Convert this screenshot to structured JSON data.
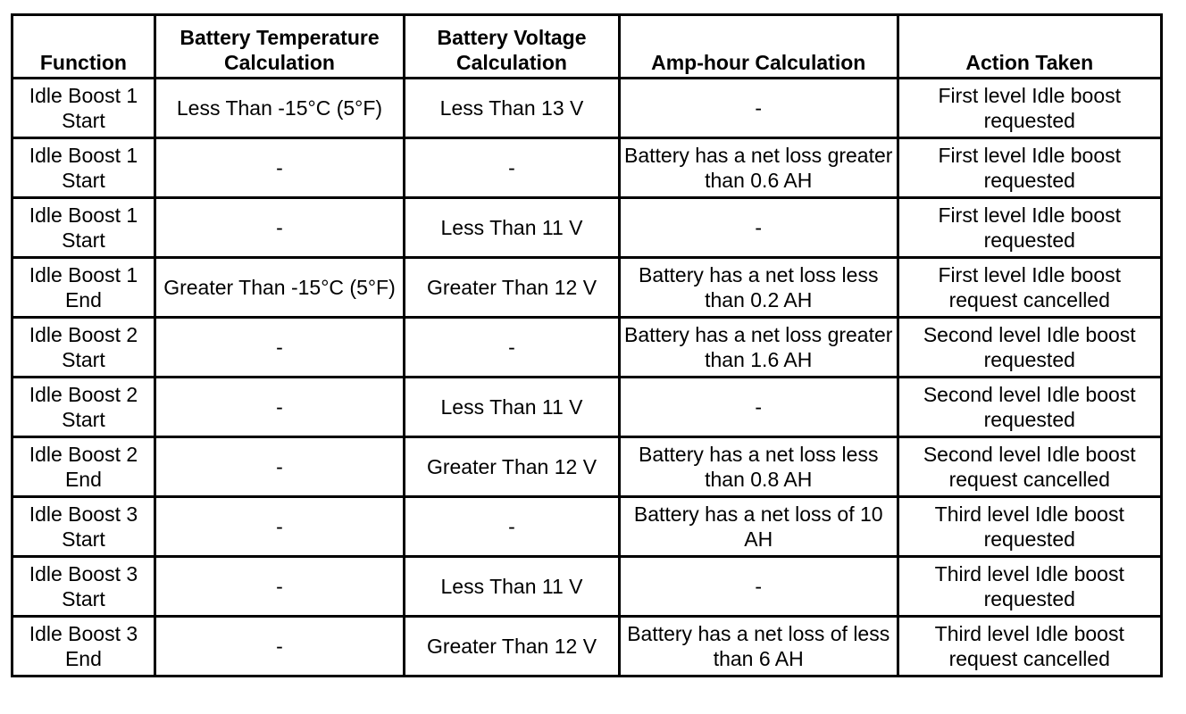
{
  "table": {
    "headers": [
      "Function",
      "Battery Temperature Calculation",
      "Battery Voltage Calculation",
      "Amp-hour Calculation",
      "Action Taken"
    ],
    "rows": [
      [
        "Idle Boost 1 Start",
        "Less Than -15°C (5°F)",
        "Less Than 13 V",
        "-",
        "First level Idle boost requested"
      ],
      [
        "Idle Boost 1 Start",
        "-",
        "-",
        "Battery has a net loss greater than 0.6 AH",
        "First level Idle boost requested"
      ],
      [
        "Idle Boost 1 Start",
        "-",
        "Less Than 11 V",
        "-",
        "First level Idle boost requested"
      ],
      [
        "Idle Boost 1 End",
        "Greater Than -15°C (5°F)",
        "Greater Than 12 V",
        "Battery has a net loss less than 0.2 AH",
        "First level Idle boost request cancelled"
      ],
      [
        "Idle Boost 2 Start",
        "-",
        "-",
        "Battery has a net loss greater than 1.6 AH",
        "Second level Idle boost requested"
      ],
      [
        "Idle Boost 2 Start",
        "-",
        "Less Than 11 V",
        "-",
        "Second level Idle boost requested"
      ],
      [
        "Idle Boost 2 End",
        "-",
        "Greater Than 12 V",
        "Battery has a net loss less than 0.8 AH",
        "Second level Idle boost request cancelled"
      ],
      [
        "Idle Boost 3 Start",
        "-",
        "-",
        "Battery has a net loss of 10 AH",
        "Third level Idle boost requested"
      ],
      [
        "Idle Boost 3 Start",
        "-",
        "Less Than 11 V",
        "-",
        "Third level Idle boost requested"
      ],
      [
        "Idle Boost 3 End",
        "-",
        "Greater Than 12 V",
        "Battery has a net loss of less than 6 AH",
        "Third level Idle boost request cancelled"
      ]
    ]
  }
}
